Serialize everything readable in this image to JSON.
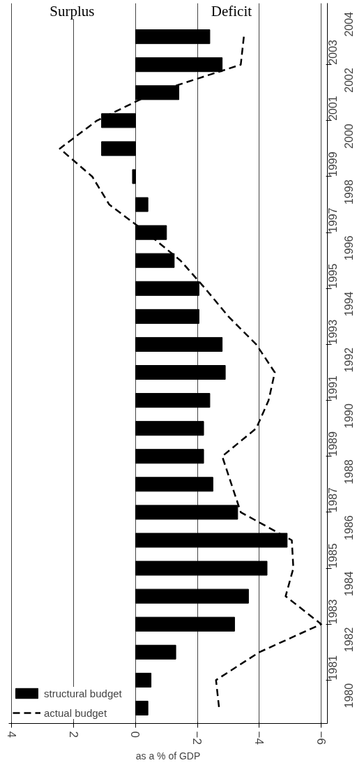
{
  "chart_data": {
    "type": "bar",
    "orientation": "horizontal",
    "xlabel": "as a % of GDP",
    "annotations": [
      "Surplus",
      "Deficit"
    ],
    "categories": [
      "2004",
      "2003",
      "2002",
      "2001",
      "2000",
      "1999",
      "1998",
      "1997",
      "1996",
      "1995",
      "1994",
      "1993",
      "1992",
      "1991",
      "1990",
      "1989",
      "1988",
      "1987",
      "1986",
      "1985",
      "1984",
      "1983",
      "1982",
      "1981",
      "1980"
    ],
    "series": [
      {
        "name": "structural budget",
        "color": "#000000",
        "values": [
          -2.4,
          -2.8,
          -1.4,
          1.1,
          1.1,
          0.1,
          -0.4,
          -1.0,
          -1.25,
          -2.05,
          -2.05,
          -2.8,
          -2.9,
          -2.4,
          -2.2,
          -2.2,
          -2.5,
          -3.3,
          -4.9,
          -4.25,
          -3.65,
          -3.2,
          -1.3,
          -0.5,
          -0.4
        ]
      },
      {
        "name": "actual budget",
        "type": "line",
        "line_style": "dashed",
        "color": "#000000",
        "values": [
          -3.5,
          -3.4,
          -0.6,
          1.25,
          2.45,
          1.4,
          0.85,
          -0.35,
          -1.45,
          -2.25,
          -3.0,
          -3.9,
          -4.5,
          -4.3,
          -3.9,
          -2.8,
          -3.1,
          -3.4,
          -5.05,
          -5.1,
          -4.85,
          -6.0,
          -4.0,
          -2.6,
          -2.7
        ]
      }
    ],
    "xlim": [
      4.1,
      -6.2
    ],
    "xticks": [
      4,
      2,
      0,
      -2,
      -4,
      -6
    ],
    "grid": "x",
    "legend": "bottom left",
    "marker": "none"
  }
}
